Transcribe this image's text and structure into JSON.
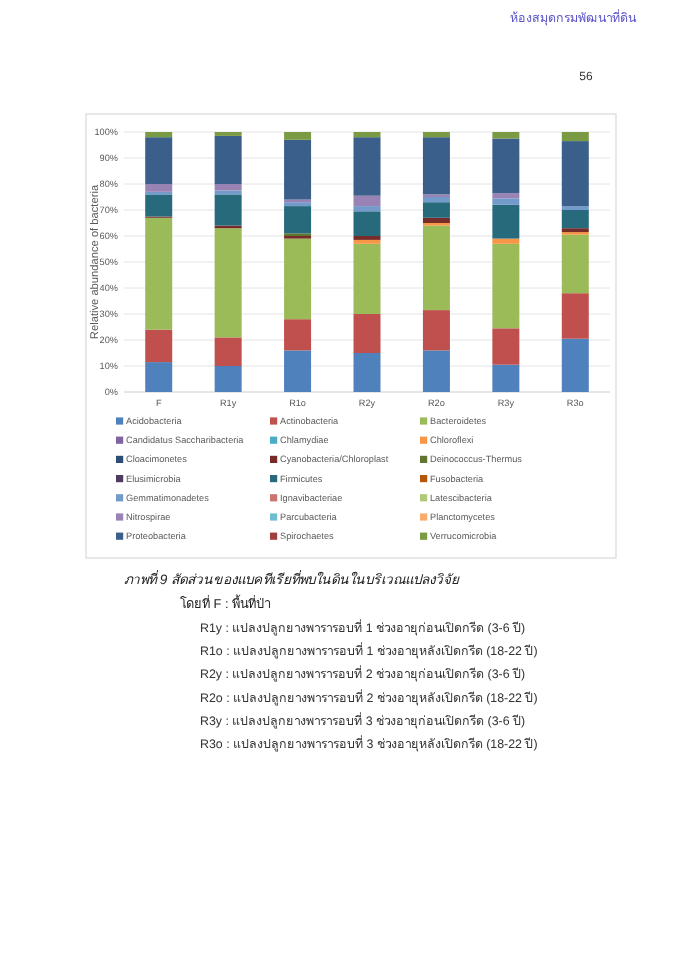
{
  "chart_data": {
    "type": "bar",
    "stacked": true,
    "ylabel": "Relative abundance of bacteria",
    "categories": [
      "F",
      "R1y",
      "R1o",
      "R2y",
      "R2o",
      "R3y",
      "R3o"
    ],
    "ylim": [
      0,
      100
    ],
    "yticks": [
      {
        "value": 0,
        "label": "0%"
      },
      {
        "value": 10,
        "label": "10%"
      },
      {
        "value": 20,
        "label": "20%"
      },
      {
        "value": 30,
        "label": "30%"
      },
      {
        "value": 40,
        "label": "40%"
      },
      {
        "value": 50,
        "label": "50%"
      },
      {
        "value": 60,
        "label": "60%"
      },
      {
        "value": 70,
        "label": "70%"
      },
      {
        "value": 80,
        "label": "80%"
      },
      {
        "value": 90,
        "label": "90%"
      },
      {
        "value": 100,
        "label": "100%"
      }
    ],
    "grid": "y",
    "legend": "bottom",
    "series": [
      {
        "name": "Acidobacteria",
        "color": "#4f81bd",
        "values": [
          11.5,
          10,
          16,
          15,
          16,
          10.5,
          20.5
        ]
      },
      {
        "name": "Actinobacteria",
        "color": "#c0504d",
        "values": [
          12.5,
          11,
          12,
          15,
          15.5,
          14,
          17.5
        ]
      },
      {
        "name": "Bacteroidetes",
        "color": "#9bbb59",
        "values": [
          43,
          42,
          31,
          27,
          32.5,
          32.5,
          22.5
        ]
      },
      {
        "name": "Candidatus Saccharibacteria",
        "color": "#8064a2",
        "values": [
          0,
          0,
          0,
          0,
          0,
          0,
          0
        ]
      },
      {
        "name": "Chlamydiae",
        "color": "#4bacc6",
        "values": [
          0,
          0,
          0,
          0,
          0,
          0,
          0
        ]
      },
      {
        "name": "Chloroflexi",
        "color": "#f79646",
        "values": [
          0,
          0,
          0,
          1.5,
          1,
          2,
          1
        ]
      },
      {
        "name": "Cloacimonetes",
        "color": "#2c4d75",
        "values": [
          0,
          0,
          0,
          0,
          0,
          0,
          0
        ]
      },
      {
        "name": "Cyanobacteria/Chloroplast",
        "color": "#772c2a",
        "values": [
          0.5,
          1,
          1,
          1.5,
          2,
          0,
          1.5
        ]
      },
      {
        "name": "Deinococcus-Thermus",
        "color": "#5f7530",
        "values": [
          0,
          0,
          1,
          0,
          0,
          0,
          0
        ]
      },
      {
        "name": "Elusimicrobia",
        "color": "#4d3b62",
        "values": [
          0,
          0,
          0,
          0,
          0,
          0,
          0
        ]
      },
      {
        "name": "Firmicutes",
        "color": "#276a7c",
        "values": [
          8.5,
          12,
          10.5,
          9.5,
          6,
          13,
          7
        ]
      },
      {
        "name": "Fusobacteria",
        "color": "#b65708",
        "values": [
          0,
          0,
          0,
          0,
          0,
          0,
          0
        ]
      },
      {
        "name": "Gemmatimonadetes",
        "color": "#729aca",
        "values": [
          1,
          1.5,
          1.5,
          2,
          2,
          2.5,
          1.5
        ]
      },
      {
        "name": "Ignavibacteriae",
        "color": "#cd7371",
        "values": [
          0,
          0,
          0,
          0,
          0,
          0,
          0
        ]
      },
      {
        "name": "Latescibacteria",
        "color": "#afc97a",
        "values": [
          0,
          0,
          0,
          0,
          0,
          0,
          0
        ]
      },
      {
        "name": "Nitrospirae",
        "color": "#9983b5",
        "values": [
          3,
          2.5,
          1,
          4,
          1,
          2,
          0
        ]
      },
      {
        "name": "Parcubacteria",
        "color": "#6fbdd1",
        "values": [
          0,
          0,
          0,
          0,
          0,
          0,
          0
        ]
      },
      {
        "name": "Planctomycetes",
        "color": "#f9ab6b",
        "values": [
          0,
          0,
          0,
          0,
          0,
          0,
          0
        ]
      },
      {
        "name": "Proteobacteria",
        "color": "#3a5f8b",
        "values": [
          18,
          18.5,
          23,
          22.5,
          22,
          21,
          25
        ]
      },
      {
        "name": "Spirochaetes",
        "color": "#a0403e",
        "values": [
          0,
          0,
          0,
          0,
          0,
          0,
          0
        ]
      },
      {
        "name": "Verrucomicrobia",
        "color": "#7a9a44",
        "values": [
          2,
          1.5,
          3,
          2,
          2,
          2.5,
          3.5
        ]
      }
    ],
    "annotations": [
      "ห้องสมุดกรมพัฒนาที่ดิน",
      "56",
      "ภาพที่ 9 สัดส่วนของแบคทีเรียที่พบในดินในบริเวณแปลงวิจัย",
      "โดยที่ F : พื้นที่ป่า",
      "R1y : แปลงปลูกยางพารารอบที่ 1 ช่วงอายุก่อนเปิดกรีด (3-6 ปี)",
      "R1o : แปลงปลูกยางพารารอบที่ 1 ช่วงอายุหลังเปิดกรีด (18-22 ปี)",
      "R2y : แปลงปลูกยางพารารอบที่ 2 ช่วงอายุก่อนเปิดกรีด (3-6 ปี)",
      "R2o : แปลงปลูกยางพารารอบที่ 2 ช่วงอายุหลังเปิดกรีด (18-22 ปี)",
      "R3y : แปลงปลูกยางพารารอบที่ 3 ช่วงอายุก่อนเปิดกรีด (3-6 ปี)",
      "R3o : แปลงปลูกยางพารารอบที่ 3 ช่วงอายุหลังเปิดกรีด (18-22 ปี)"
    ]
  }
}
